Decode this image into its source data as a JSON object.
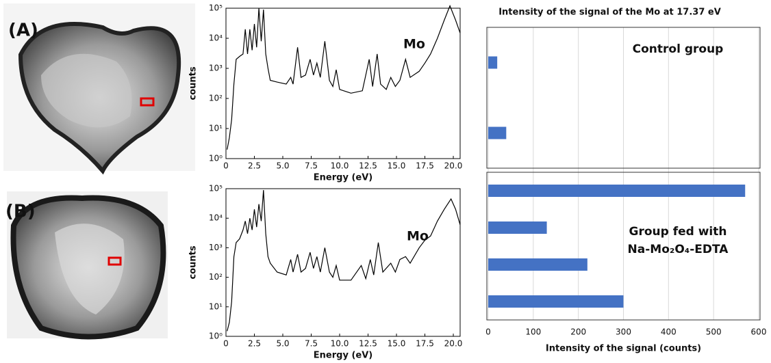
{
  "chart_data": [
    {
      "type": "line",
      "panel_label": "(A)",
      "annotation": "Mo",
      "xlabel": "Energy (eV)",
      "ylabel": "counts",
      "color": "#000000",
      "log_y": true,
      "xlim": [
        0,
        20.6
      ],
      "xticks": [
        0,
        2.5,
        {
          "value": 5,
          "label": "5.0"
        },
        7.5,
        {
          "value": 10,
          "label": "10.0"
        },
        12.5,
        {
          "value": 15,
          "label": "15.0"
        },
        17.5,
        {
          "value": 20,
          "label": "20.0"
        }
      ],
      "ylim": [
        1,
        100000
      ],
      "yticks": [
        {
          "value": 1,
          "label": "10⁰"
        },
        {
          "value": 10,
          "label": "10¹"
        },
        {
          "value": 100,
          "label": "10²"
        },
        {
          "value": 1000,
          "label": "10³"
        },
        {
          "value": 10000,
          "label": "10⁴"
        },
        {
          "value": 100000,
          "label": "10⁵"
        }
      ],
      "x": [
        0.1,
        0.3,
        0.5,
        0.7,
        0.9,
        1.2,
        1.5,
        1.7,
        1.9,
        2.1,
        2.3,
        2.5,
        2.7,
        2.9,
        3.1,
        3.3,
        3.5,
        3.7,
        3.9,
        4.5,
        5.3,
        5.7,
        5.9,
        6.3,
        6.6,
        7.0,
        7.4,
        7.7,
        8.0,
        8.3,
        8.7,
        9.1,
        9.4,
        9.7,
        10.0,
        11.0,
        12.0,
        12.6,
        12.9,
        13.3,
        13.6,
        14.1,
        14.5,
        14.9,
        15.3,
        15.8,
        16.2,
        17.0,
        17.5,
        18.0,
        18.6,
        19.2,
        19.7,
        20.2,
        20.6
      ],
      "values": [
        2,
        5,
        20,
        300,
        2000,
        2500,
        3000,
        20000,
        3000,
        20000,
        4000,
        30000,
        5000,
        100000,
        8000,
        90000,
        3000,
        1000,
        400,
        350,
        300,
        500,
        300,
        5000,
        500,
        600,
        2000,
        600,
        1500,
        500,
        8000,
        400,
        250,
        900,
        200,
        150,
        180,
        2000,
        250,
        3000,
        300,
        200,
        500,
        250,
        400,
        2000,
        500,
        800,
        1500,
        3000,
        10000,
        40000,
        120000,
        40000,
        15000
      ]
    },
    {
      "type": "line",
      "panel_label": "(B)",
      "annotation": "Mo",
      "xlabel": "Energy (eV)",
      "ylabel": "counts",
      "color": "#000000",
      "log_y": true,
      "xlim": [
        0,
        20.6
      ],
      "xticks": [
        0,
        2.5,
        {
          "value": 5,
          "label": "5.0"
        },
        7.5,
        {
          "value": 10,
          "label": "10.0"
        },
        12.5,
        {
          "value": 15,
          "label": "15.0"
        },
        17.5,
        {
          "value": 20,
          "label": "20.0"
        }
      ],
      "ylim": [
        1,
        100000
      ],
      "yticks": [
        {
          "value": 1,
          "label": "10⁰"
        },
        {
          "value": 10,
          "label": "10¹"
        },
        {
          "value": 100,
          "label": "10²"
        },
        {
          "value": 1000,
          "label": "10³"
        },
        {
          "value": 10000,
          "label": "10⁴"
        },
        {
          "value": 100000,
          "label": "10⁵"
        }
      ],
      "x": [
        0.1,
        0.3,
        0.5,
        0.7,
        0.9,
        1.2,
        1.5,
        1.7,
        1.9,
        2.1,
        2.3,
        2.5,
        2.7,
        2.9,
        3.1,
        3.3,
        3.5,
        3.7,
        3.9,
        4.5,
        5.3,
        5.7,
        5.9,
        6.3,
        6.6,
        7.0,
        7.4,
        7.7,
        8.0,
        8.3,
        8.7,
        9.1,
        9.4,
        9.7,
        10.0,
        11.0,
        11.9,
        12.3,
        12.7,
        13.0,
        13.4,
        13.8,
        14.5,
        14.9,
        15.3,
        15.8,
        16.2,
        17.0,
        17.5,
        18.0,
        18.6,
        19.2,
        19.8,
        20.2,
        20.6
      ],
      "values": [
        1.5,
        3,
        15,
        500,
        1500,
        2000,
        4000,
        8000,
        3000,
        10000,
        4000,
        20000,
        5000,
        30000,
        8000,
        90000,
        3000,
        500,
        300,
        150,
        120,
        400,
        150,
        600,
        150,
        200,
        700,
        200,
        500,
        150,
        1000,
        150,
        100,
        250,
        80,
        80,
        250,
        90,
        400,
        120,
        1500,
        150,
        300,
        150,
        400,
        500,
        300,
        1000,
        1800,
        2500,
        8000,
        20000,
        45000,
        20000,
        6000
      ]
    },
    {
      "type": "bar",
      "orientation": "horizontal",
      "title": "Intensity of the signal of the Mo at 17.37 eV",
      "xlabel": "Intensity of the signal (counts)",
      "color": "#4472c4",
      "grid": true,
      "xlim": [
        0,
        600
      ],
      "xticks": [
        0,
        100,
        200,
        300,
        400,
        500,
        600
      ],
      "groups": [
        {
          "annotation": [
            "Control group"
          ],
          "categories": [
            null,
            null
          ],
          "values": [
            20,
            40
          ]
        },
        {
          "annotation": [
            "Group fed with",
            "Na-Mo₂O₄-EDTA"
          ],
          "categories": [
            null,
            null,
            null,
            null
          ],
          "values": [
            570,
            130,
            220,
            300
          ]
        }
      ]
    }
  ]
}
